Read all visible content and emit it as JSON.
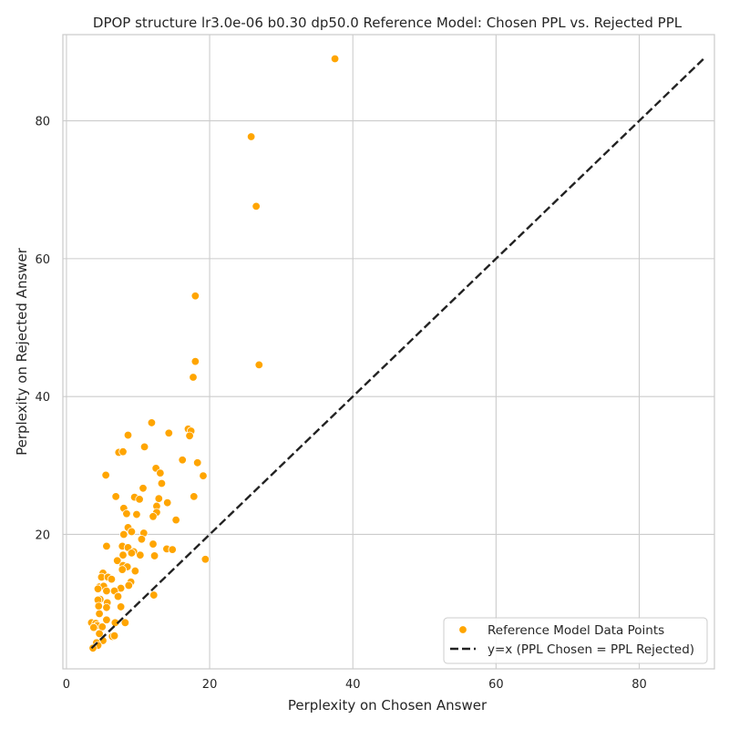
{
  "chart_data": {
    "type": "scatter",
    "title": "DPOP structure lr3.0e-06 b0.30 dp50.0 Reference Model: Chosen PPL vs. Rejected PPL",
    "xlabel": "Perplexity on Chosen Answer",
    "ylabel": "Perplexity on Rejected Answer",
    "xlim": [
      -0.5,
      90.5
    ],
    "ylim": [
      0.5,
      92.5
    ],
    "xticks": [
      0,
      20,
      40,
      60,
      80
    ],
    "yticks": [
      20,
      40,
      60,
      80
    ],
    "grid": true,
    "legend_position": "bottom-right",
    "colors": {
      "points": "#FFA500",
      "point_edge": "#ffffff",
      "reference_line": "#222222",
      "grid": "#cccccc",
      "frame": "#cccccc"
    },
    "series": [
      {
        "name": "Reference Model Data Points",
        "kind": "scatter",
        "points": [
          [
            37.5,
            89.0
          ],
          [
            25.8,
            77.7
          ],
          [
            26.5,
            67.6
          ],
          [
            18.0,
            54.6
          ],
          [
            18.0,
            45.1
          ],
          [
            26.9,
            44.6
          ],
          [
            17.7,
            42.8
          ],
          [
            11.9,
            36.2
          ],
          [
            17.0,
            35.3
          ],
          [
            14.3,
            34.7
          ],
          [
            17.4,
            35.0
          ],
          [
            17.2,
            34.3
          ],
          [
            8.6,
            34.4
          ],
          [
            10.9,
            32.7
          ],
          [
            7.3,
            31.9
          ],
          [
            7.9,
            32.0
          ],
          [
            16.2,
            30.8
          ],
          [
            18.3,
            30.4
          ],
          [
            12.5,
            29.6
          ],
          [
            13.1,
            28.9
          ],
          [
            19.1,
            28.5
          ],
          [
            5.5,
            28.6
          ],
          [
            13.3,
            27.4
          ],
          [
            10.7,
            26.7
          ],
          [
            6.9,
            25.5
          ],
          [
            9.5,
            25.4
          ],
          [
            10.2,
            25.1
          ],
          [
            12.9,
            25.2
          ],
          [
            17.8,
            25.5
          ],
          [
            14.1,
            24.6
          ],
          [
            12.6,
            24.1
          ],
          [
            8.0,
            23.8
          ],
          [
            8.4,
            23.0
          ],
          [
            12.6,
            23.2
          ],
          [
            9.8,
            22.9
          ],
          [
            12.1,
            22.6
          ],
          [
            15.3,
            22.1
          ],
          [
            8.6,
            21.0
          ],
          [
            9.1,
            20.4
          ],
          [
            10.8,
            20.2
          ],
          [
            8.0,
            20.0
          ],
          [
            10.5,
            19.3
          ],
          [
            12.1,
            18.6
          ],
          [
            5.6,
            18.3
          ],
          [
            7.8,
            18.3
          ],
          [
            8.6,
            18.1
          ],
          [
            9.4,
            17.5
          ],
          [
            14.0,
            17.9
          ],
          [
            14.8,
            17.8
          ],
          [
            9.1,
            17.3
          ],
          [
            7.9,
            17.0
          ],
          [
            10.3,
            17.0
          ],
          [
            12.3,
            16.9
          ],
          [
            19.4,
            16.4
          ],
          [
            7.1,
            16.2
          ],
          [
            7.9,
            15.5
          ],
          [
            8.5,
            15.3
          ],
          [
            7.8,
            14.9
          ],
          [
            9.6,
            14.7
          ],
          [
            5.1,
            14.4
          ],
          [
            4.9,
            13.8
          ],
          [
            5.8,
            13.8
          ],
          [
            6.3,
            13.5
          ],
          [
            9.0,
            13.1
          ],
          [
            8.7,
            12.6
          ],
          [
            4.6,
            12.4
          ],
          [
            5.2,
            12.5
          ],
          [
            4.4,
            12.1
          ],
          [
            7.6,
            12.2
          ],
          [
            5.6,
            11.8
          ],
          [
            6.7,
            11.8
          ],
          [
            12.2,
            11.2
          ],
          [
            7.2,
            11.0
          ],
          [
            4.7,
            10.6
          ],
          [
            4.4,
            10.5
          ],
          [
            5.7,
            10.1
          ],
          [
            4.5,
            9.6
          ],
          [
            5.6,
            9.4
          ],
          [
            7.6,
            9.5
          ],
          [
            4.6,
            8.5
          ],
          [
            5.6,
            7.6
          ],
          [
            3.5,
            7.2
          ],
          [
            4.1,
            7.1
          ],
          [
            6.8,
            7.2
          ],
          [
            8.2,
            7.2
          ],
          [
            4.3,
            6.8
          ],
          [
            3.8,
            6.5
          ],
          [
            5.0,
            6.6
          ],
          [
            4.6,
            5.6
          ],
          [
            6.4,
            5.2
          ],
          [
            6.7,
            5.3
          ],
          [
            5.1,
            4.6
          ],
          [
            4.2,
            4.3
          ],
          [
            4.4,
            3.9
          ],
          [
            3.7,
            3.5
          ]
        ]
      },
      {
        "name": "y=x (PPL Chosen = PPL Rejected)",
        "kind": "line",
        "style": "dashed",
        "points": [
          [
            3.5,
            3.5
          ],
          [
            89.0,
            89.0
          ]
        ]
      }
    ]
  }
}
